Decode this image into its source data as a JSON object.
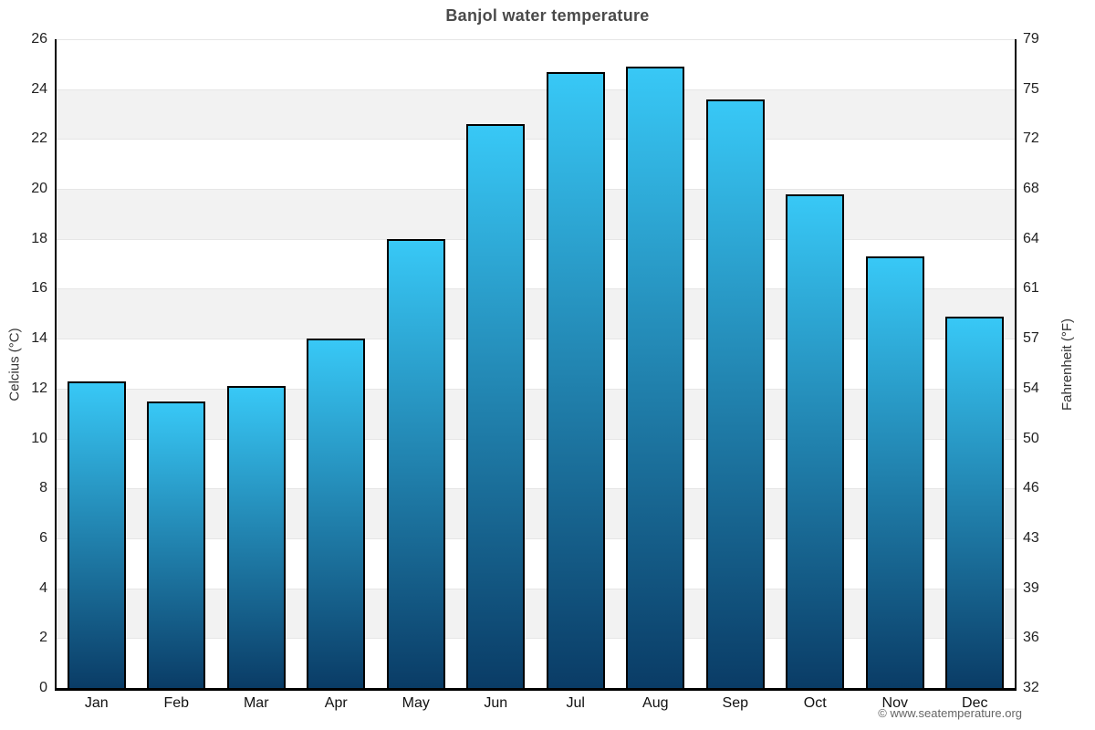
{
  "title": "Banjol water temperature",
  "footer_credit": "© www.seatemperature.org",
  "axes": {
    "left_title": "Celcius (°C)",
    "right_title": "Fahrenheit (°F)",
    "celsius_ticks": [
      0,
      2,
      4,
      6,
      8,
      10,
      12,
      14,
      16,
      18,
      20,
      22,
      24,
      26
    ],
    "fahrenheit_ticks": [
      32,
      36,
      39,
      43,
      46,
      50,
      54,
      57,
      61,
      64,
      68,
      72,
      75,
      79
    ]
  },
  "chart_data": {
    "type": "bar",
    "title": "Banjol water temperature",
    "categories": [
      "Jan",
      "Feb",
      "Mar",
      "Apr",
      "May",
      "Jun",
      "Jul",
      "Aug",
      "Sep",
      "Oct",
      "Nov",
      "Dec"
    ],
    "values": [
      12.3,
      11.5,
      12.1,
      14.0,
      18.0,
      22.6,
      24.7,
      24.9,
      23.6,
      19.8,
      17.3,
      14.9
    ],
    "unit": "°C",
    "xlabel": "",
    "ylabel_left": "Celcius (°C)",
    "ylabel_right": "Fahrenheit (°F)",
    "ylim": [
      0,
      26
    ],
    "grid": "horizontal",
    "plot_bands": "alternating 2°C stripes (white / light gray)",
    "legend": "none"
  },
  "colors": {
    "bar_gradient_top": "#38c8f6",
    "bar_gradient_bottom": "#0a3c66",
    "bar_border": "#000000",
    "band_gray": "#f2f2f2",
    "band_white": "#ffffff",
    "gridline": "#e6e6e6",
    "axis_line": "#000000",
    "title_text": "#4a4a4a",
    "tick_text": "#222222",
    "footer_text": "#666666"
  }
}
